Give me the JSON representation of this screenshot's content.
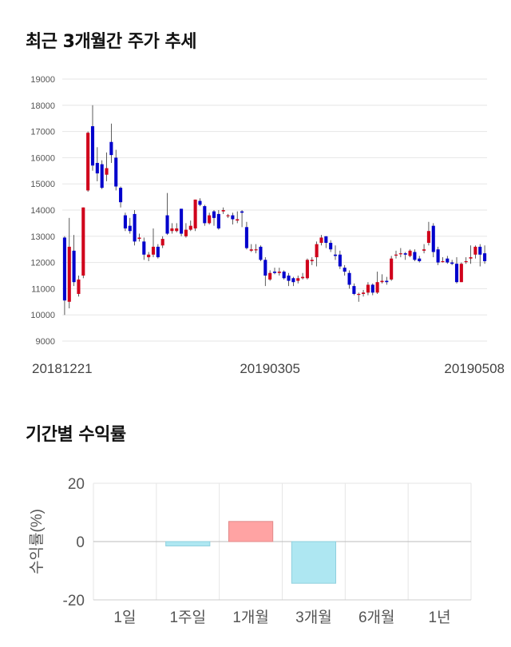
{
  "sections": {
    "price_title": "최근 3개월간 주가 추세",
    "returns_title": "기간별 수익률"
  },
  "colors": {
    "up": "#d0021b",
    "down": "#0000cc",
    "return_positive": "#ffa3a3",
    "return_negative": "#aee7f2"
  },
  "chart_data": [
    {
      "type": "candlestick",
      "title": "최근 3개월간 주가 추세",
      "ylim": [
        9000,
        19000
      ],
      "yticks": [
        9000,
        10000,
        11000,
        12000,
        13000,
        14000,
        15000,
        16000,
        17000,
        18000,
        19000
      ],
      "xtick_labels": [
        "20181221",
        "20190305",
        "20190508"
      ],
      "grid": true,
      "candles": [
        [
          12950,
          10550,
          13000,
          10000
        ],
        [
          10500,
          12600,
          13700,
          10250
        ],
        [
          12450,
          11250,
          13050,
          11100
        ],
        [
          10800,
          11350,
          11500,
          10700
        ],
        [
          11500,
          14100,
          14100,
          11400
        ],
        [
          14750,
          16950,
          17000,
          14700
        ],
        [
          17200,
          15700,
          18000,
          15500
        ],
        [
          15800,
          15400,
          16400,
          15100
        ],
        [
          15750,
          14850,
          15900,
          14800
        ],
        [
          15350,
          15600,
          16200,
          15100
        ],
        [
          16600,
          16100,
          17300,
          15800
        ],
        [
          16000,
          14900,
          16300,
          14750
        ],
        [
          14850,
          14300,
          14900,
          14100
        ],
        [
          13800,
          13300,
          13900,
          13200
        ],
        [
          13400,
          13200,
          13700,
          13100
        ],
        [
          13850,
          12800,
          14000,
          12650
        ],
        [
          12900,
          12950,
          13100,
          12800
        ],
        [
          12800,
          12300,
          12950,
          12100
        ],
        [
          12200,
          12300,
          12400,
          12050
        ],
        [
          12300,
          12600,
          13300,
          12200
        ],
        [
          12600,
          12200,
          12700,
          12150
        ],
        [
          12650,
          12900,
          13000,
          12550
        ],
        [
          13800,
          13100,
          14650,
          13050
        ],
        [
          13200,
          13300,
          13500,
          13100
        ],
        [
          13200,
          13300,
          13500,
          13150
        ],
        [
          14050,
          13100,
          14050,
          13000
        ],
        [
          13000,
          13250,
          13500,
          12950
        ],
        [
          13250,
          13400,
          13600,
          13200
        ],
        [
          13300,
          14400,
          14400,
          13200
        ],
        [
          14350,
          14200,
          14450,
          14150
        ],
        [
          14150,
          13500,
          14200,
          13400
        ],
        [
          13500,
          13800,
          13900,
          13450
        ],
        [
          13950,
          13700,
          14000,
          13400
        ],
        [
          13850,
          13300,
          14000,
          13250
        ],
        [
          13950,
          14000,
          14100,
          13850
        ],
        [
          13800,
          13800,
          13850,
          13700
        ],
        [
          13800,
          13650,
          13900,
          13450
        ],
        [
          13600,
          13650,
          13950,
          13500
        ],
        [
          13950,
          13900,
          14000,
          13350
        ],
        [
          13350,
          12550,
          13550,
          12500
        ],
        [
          12450,
          12500,
          12700,
          12400
        ],
        [
          12500,
          12500,
          12700,
          12350
        ],
        [
          12600,
          12100,
          12650,
          12050
        ],
        [
          12100,
          11500,
          12200,
          11100
        ],
        [
          11350,
          11600,
          11700,
          11300
        ],
        [
          11650,
          11600,
          11800,
          11550
        ],
        [
          11600,
          11650,
          11800,
          11500
        ],
        [
          11650,
          11400,
          11700,
          11350
        ],
        [
          11500,
          11300,
          11600,
          11100
        ],
        [
          11400,
          11250,
          11450,
          11100
        ],
        [
          11300,
          11400,
          11500,
          11200
        ],
        [
          11400,
          11450,
          11600,
          11350
        ],
        [
          11400,
          12100,
          12150,
          11350
        ],
        [
          12050,
          12100,
          12200,
          11900
        ],
        [
          12200,
          12700,
          12800,
          11850
        ],
        [
          12750,
          12950,
          13050,
          12650
        ],
        [
          13000,
          12750,
          13000,
          12550
        ],
        [
          12750,
          12500,
          12850,
          12400
        ],
        [
          12300,
          12250,
          12650,
          12100
        ],
        [
          12300,
          11850,
          12450,
          11750
        ],
        [
          11800,
          11650,
          11900,
          11500
        ],
        [
          11600,
          11150,
          11700,
          11000
        ],
        [
          11100,
          10800,
          11200,
          10750
        ],
        [
          10800,
          10800,
          10850,
          10500
        ],
        [
          10800,
          10850,
          10950,
          10700
        ],
        [
          10850,
          11150,
          11250,
          10750
        ],
        [
          11150,
          10850,
          11200,
          10750
        ],
        [
          10850,
          11250,
          11650,
          10800
        ],
        [
          11250,
          11300,
          11550,
          11200
        ],
        [
          11300,
          11250,
          11450,
          11150
        ],
        [
          11350,
          12150,
          12250,
          11300
        ],
        [
          12300,
          12300,
          12450,
          12150
        ],
        [
          12350,
          12350,
          12550,
          12200
        ],
        [
          12350,
          12300,
          12400,
          12100
        ],
        [
          12250,
          12450,
          12500,
          12200
        ],
        [
          12400,
          12100,
          12500,
          12050
        ],
        [
          12150,
          12050,
          12250,
          12000
        ],
        [
          12450,
          12500,
          12700,
          12350
        ],
        [
          12750,
          13200,
          13550,
          12650
        ],
        [
          13400,
          12400,
          13500,
          12200
        ],
        [
          12500,
          12000,
          12600,
          11900
        ],
        [
          12050,
          12050,
          12200,
          12000
        ],
        [
          12150,
          12000,
          12250,
          11950
        ],
        [
          12000,
          11950,
          12100,
          11900
        ],
        [
          11950,
          11250,
          12200,
          11200
        ],
        [
          11250,
          11950,
          12000,
          11250
        ],
        [
          12050,
          12050,
          12200,
          11950
        ],
        [
          12150,
          12200,
          12650,
          11950
        ],
        [
          12300,
          12600,
          12650,
          12150
        ],
        [
          12600,
          12300,
          12700,
          11850
        ],
        [
          12350,
          12050,
          12650,
          11950
        ]
      ]
    },
    {
      "type": "bar",
      "title": "기간별 수익률",
      "ylabel": "수익률(%)",
      "ylim": [
        -20,
        20
      ],
      "yticks": [
        -20,
        0,
        20
      ],
      "categories": [
        "1일",
        "1주일",
        "1개월",
        "3개월",
        "6개월",
        "1년"
      ],
      "values": [
        0,
        -1.5,
        6.9,
        -14.3,
        0,
        0
      ]
    }
  ]
}
